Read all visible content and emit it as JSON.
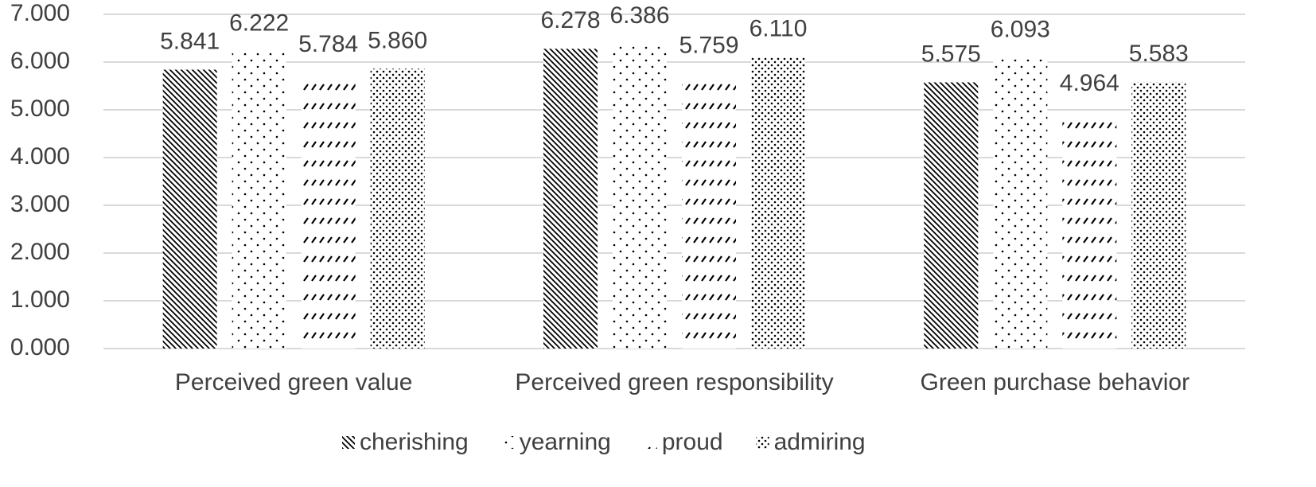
{
  "chart_data": {
    "type": "bar",
    "categories": [
      "Perceived green value",
      "Perceived green responsibility",
      "Green purchase behavior"
    ],
    "series": [
      {
        "name": "cherishing",
        "color": "#000000",
        "pattern": "diagonal",
        "values": [
          5.841,
          6.278,
          5.575
        ],
        "value_labels": [
          "5.841",
          "6.278",
          "5.575"
        ]
      },
      {
        "name": "yearning",
        "color": "#000000",
        "pattern": "sparse-dots",
        "values": [
          6.222,
          6.386,
          6.093
        ],
        "value_labels": [
          "6.222",
          "6.386",
          "6.093"
        ]
      },
      {
        "name": "proud",
        "color": "#000000",
        "pattern": "dashes",
        "values": [
          5.784,
          5.759,
          4.964
        ],
        "value_labels": [
          "5.784",
          "5.759",
          "4.964"
        ]
      },
      {
        "name": "admiring",
        "color": "#000000",
        "pattern": "dense-dots",
        "values": [
          5.86,
          6.11,
          5.583
        ],
        "value_labels": [
          "5.860",
          "6.110",
          "5.583"
        ]
      }
    ],
    "ylim": [
      0,
      7
    ],
    "yticks": [
      {
        "value": 0,
        "label": "0.000"
      },
      {
        "value": 1,
        "label": "1.000"
      },
      {
        "value": 2,
        "label": "2.000"
      },
      {
        "value": 3,
        "label": "3.000"
      },
      {
        "value": 4,
        "label": "4.000"
      },
      {
        "value": 5,
        "label": "5.000"
      },
      {
        "value": 6,
        "label": "6.000"
      },
      {
        "value": 7,
        "label": "7.000"
      }
    ],
    "grid": true,
    "legend": "bottom"
  }
}
